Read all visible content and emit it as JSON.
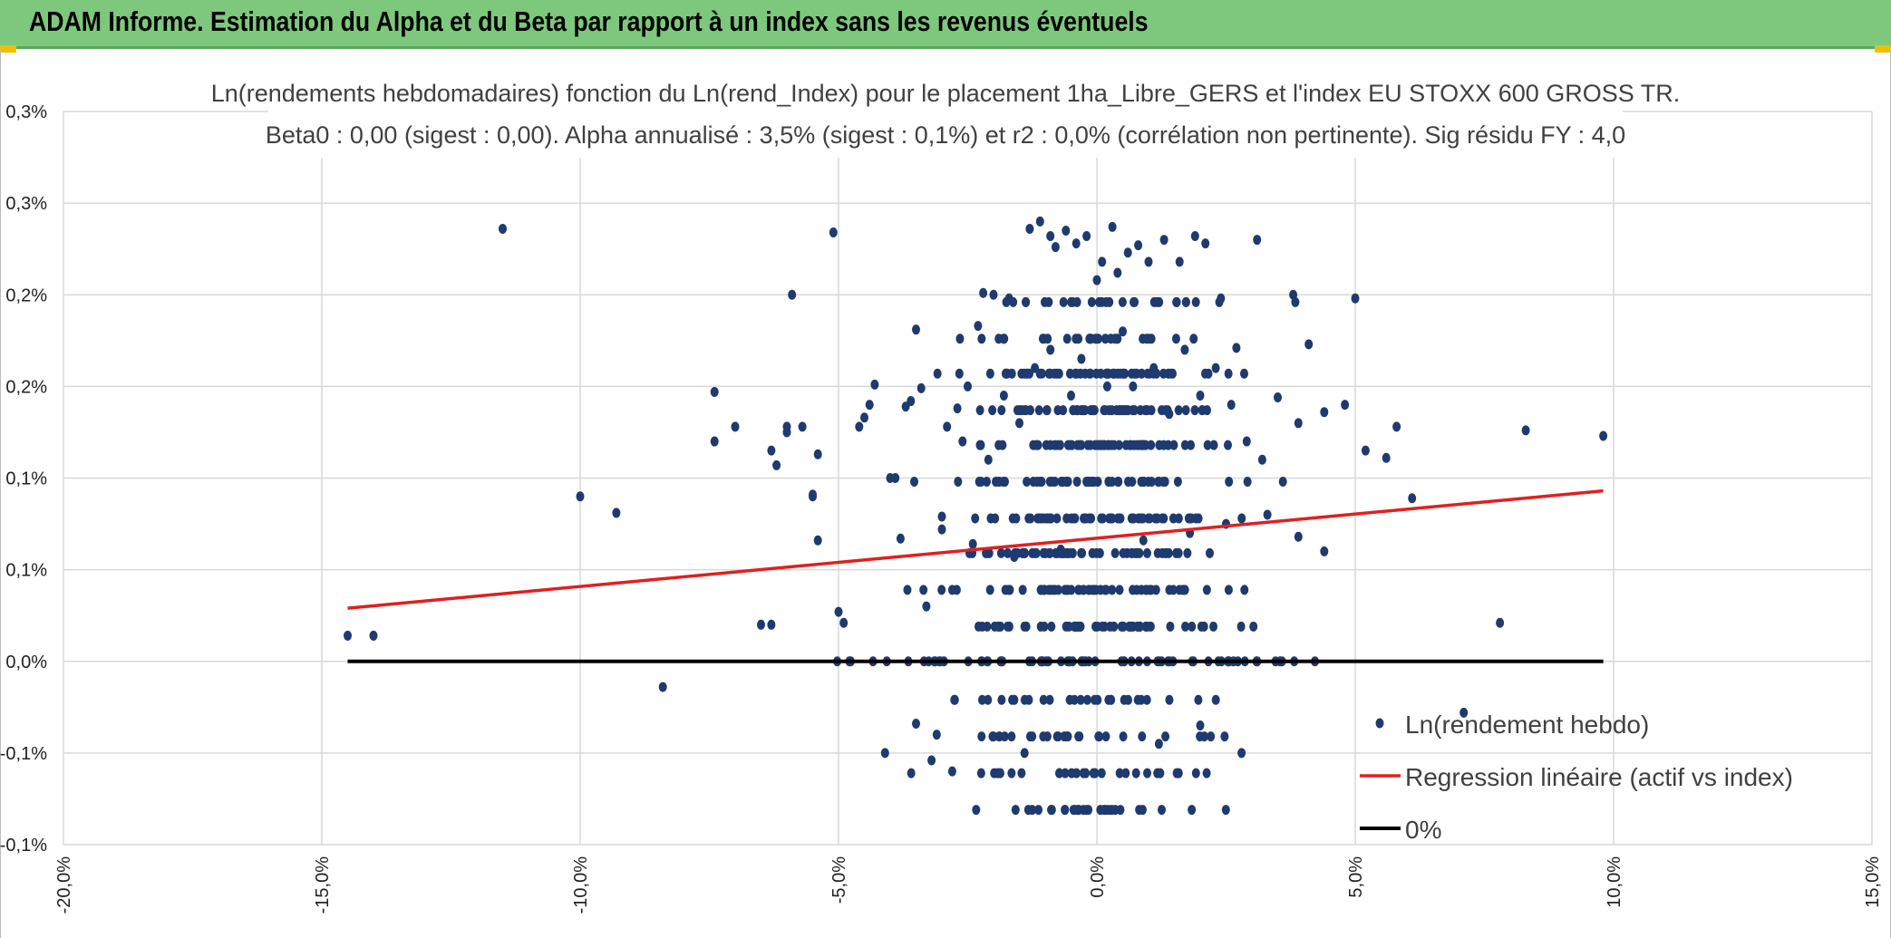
{
  "header": {
    "title": "ADAM Informe. Estimation du Alpha et du Beta par rapport à un index sans les revenus éventuels"
  },
  "colors": {
    "banner": "#7dc87d",
    "points": "#1f3a6e",
    "regression": "#e02020",
    "zero_line": "#000000",
    "grid": "#d9d9d9"
  },
  "chart_data": {
    "type": "scatter",
    "title": "Ln(rendements hebdomadaires) fonction du Ln(rend_Index) pour le placement 1ha_Libre_GERS et l'index EU STOXX 600 GROSS TR.",
    "subtitle": "Beta0 : 0,00 (sigest : 0,00). Alpha annualisé : 3,5% (sigest : 0,1%) et r2 : 0,0% (corrélation non pertinente). Sig résidu FY : 4,0",
    "xlabel": "",
    "ylabel": "",
    "x_ticks": [
      "-20,0%",
      "-15,0%",
      "-10,0%",
      "-5,0%",
      "0,0%",
      "5,0%",
      "10,0%",
      "15,0%"
    ],
    "y_ticks": [
      "-0,1%",
      "-0,1%",
      "0,0%",
      "0,1%",
      "0,1%",
      "0,2%",
      "0,2%",
      "0,3%",
      "0,3%"
    ],
    "xlim": [
      -20,
      15
    ],
    "ylim": [
      -0.1,
      0.3
    ],
    "legend_position": "bottom-right",
    "series": [
      {
        "name": "Ln(rendement hebdo)",
        "kind": "scatter",
        "note_levels": [
          -0.081,
          -0.061,
          -0.041,
          -0.021,
          0,
          0.019,
          0.039,
          0.059,
          0.078,
          0.098,
          0.118,
          0.137,
          0.157,
          0.176,
          0.196
        ],
        "points": [
          [
            -14.5,
            0.014
          ],
          [
            -14.0,
            0.014
          ],
          [
            -11.5,
            0.236
          ],
          [
            -10.0,
            0.09
          ],
          [
            -9.3,
            0.081
          ],
          [
            -8.4,
            -0.014
          ],
          [
            -7.4,
            0.147
          ],
          [
            -7.4,
            0.12
          ],
          [
            -7.0,
            0.128
          ],
          [
            -6.5,
            0.02
          ],
          [
            -6.3,
            0.02
          ],
          [
            -6.3,
            0.115
          ],
          [
            -6.2,
            0.107
          ],
          [
            -6.0,
            0.125
          ],
          [
            -6.0,
            0.128
          ],
          [
            -5.9,
            0.2
          ],
          [
            -5.7,
            0.128
          ],
          [
            -5.5,
            0.091
          ],
          [
            -5.5,
            0.09
          ],
          [
            -5.4,
            0.113
          ],
          [
            -5.4,
            0.066
          ],
          [
            -5.1,
            0.234
          ],
          [
            -5.0,
            0.027
          ],
          [
            -4.9,
            0.021
          ],
          [
            -4.6,
            0.128
          ],
          [
            -4.5,
            0.133
          ],
          [
            -4.4,
            0.14
          ],
          [
            -4.3,
            0.151
          ],
          [
            -4.0,
            0.1
          ],
          [
            -3.9,
            0.1
          ],
          [
            -3.7,
            0.139
          ],
          [
            -3.6,
            0.142
          ],
          [
            -3.4,
            0.149
          ],
          [
            -3.5,
            0.181
          ],
          [
            -3.3,
            0.03
          ],
          [
            -3.2,
            -0.054
          ],
          [
            -3.1,
            -0.04
          ],
          [
            -3.0,
            0.079
          ],
          [
            -2.9,
            0.128
          ],
          [
            -2.7,
            0.138
          ],
          [
            -2.5,
            0.15
          ],
          [
            -2.3,
            0.183
          ],
          [
            -2.2,
            0.201
          ],
          [
            -2.0,
            0.2
          ],
          [
            -1.9,
            0.176
          ],
          [
            -1.7,
            0.198
          ],
          [
            -1.3,
            0.236
          ],
          [
            -1.1,
            0.24
          ],
          [
            -0.9,
            0.232
          ],
          [
            -0.8,
            0.226
          ],
          [
            -0.6,
            0.235
          ],
          [
            -0.4,
            0.228
          ],
          [
            -0.2,
            0.232
          ],
          [
            0.0,
            0.208
          ],
          [
            0.1,
            0.218
          ],
          [
            0.3,
            0.237
          ],
          [
            0.4,
            0.212
          ],
          [
            0.6,
            0.223
          ],
          [
            0.8,
            0.227
          ],
          [
            1.0,
            0.218
          ],
          [
            1.3,
            0.23
          ],
          [
            1.6,
            0.218
          ],
          [
            1.9,
            0.232
          ],
          [
            2.1,
            0.228
          ],
          [
            2.4,
            0.198
          ],
          [
            2.7,
            0.171
          ],
          [
            3.1,
            0.23
          ],
          [
            3.5,
            0.144
          ],
          [
            3.8,
            0.2
          ],
          [
            3.9,
            0.13
          ],
          [
            4.1,
            0.173
          ],
          [
            4.4,
            0.136
          ],
          [
            4.8,
            0.14
          ],
          [
            5.0,
            0.198
          ],
          [
            5.2,
            0.115
          ],
          [
            5.6,
            0.111
          ],
          [
            5.8,
            0.128
          ],
          [
            6.1,
            0.089
          ],
          [
            7.1,
            -0.028
          ],
          [
            7.8,
            0.021
          ],
          [
            8.3,
            0.126
          ],
          [
            9.8,
            0.123
          ],
          [
            -2.6,
            0.12
          ],
          [
            -2.1,
            0.11
          ],
          [
            -1.8,
            0.145
          ],
          [
            -1.5,
            0.13
          ],
          [
            -1.2,
            0.16
          ],
          [
            -0.9,
            0.17
          ],
          [
            -0.5,
            0.145
          ],
          [
            -0.3,
            0.165
          ],
          [
            0.2,
            0.15
          ],
          [
            0.5,
            0.18
          ],
          [
            0.7,
            0.15
          ],
          [
            1.1,
            0.16
          ],
          [
            1.4,
            0.135
          ],
          [
            1.7,
            0.17
          ],
          [
            2.0,
            0.145
          ],
          [
            2.3,
            0.16
          ],
          [
            2.6,
            0.14
          ],
          [
            2.9,
            0.12
          ],
          [
            3.2,
            0.11
          ],
          [
            3.6,
            0.098
          ],
          [
            -3.8,
            0.067
          ],
          [
            -3.0,
            0.072
          ],
          [
            -2.4,
            0.064
          ],
          [
            -1.6,
            0.057
          ],
          [
            -0.7,
            0.061
          ],
          [
            0.9,
            0.066
          ],
          [
            1.8,
            0.07
          ],
          [
            2.5,
            0.075
          ],
          [
            3.3,
            0.08
          ],
          [
            3.9,
            0.068
          ],
          [
            4.4,
            0.06
          ],
          [
            -4.1,
            -0.05
          ],
          [
            -3.5,
            -0.034
          ],
          [
            -2.8,
            -0.06
          ],
          [
            -2.0,
            -0.041
          ],
          [
            -1.4,
            -0.05
          ],
          [
            1.2,
            -0.045
          ],
          [
            2.0,
            -0.035
          ],
          [
            2.8,
            -0.05
          ]
        ]
      },
      {
        "name": "Regression linéaire (actif vs index)",
        "kind": "line",
        "x": [
          -14.5,
          9.8
        ],
        "y": [
          0.029,
          0.093
        ]
      },
      {
        "name": "0%",
        "kind": "line",
        "x": [
          -14.5,
          9.8
        ],
        "y": [
          0,
          0
        ]
      }
    ]
  }
}
